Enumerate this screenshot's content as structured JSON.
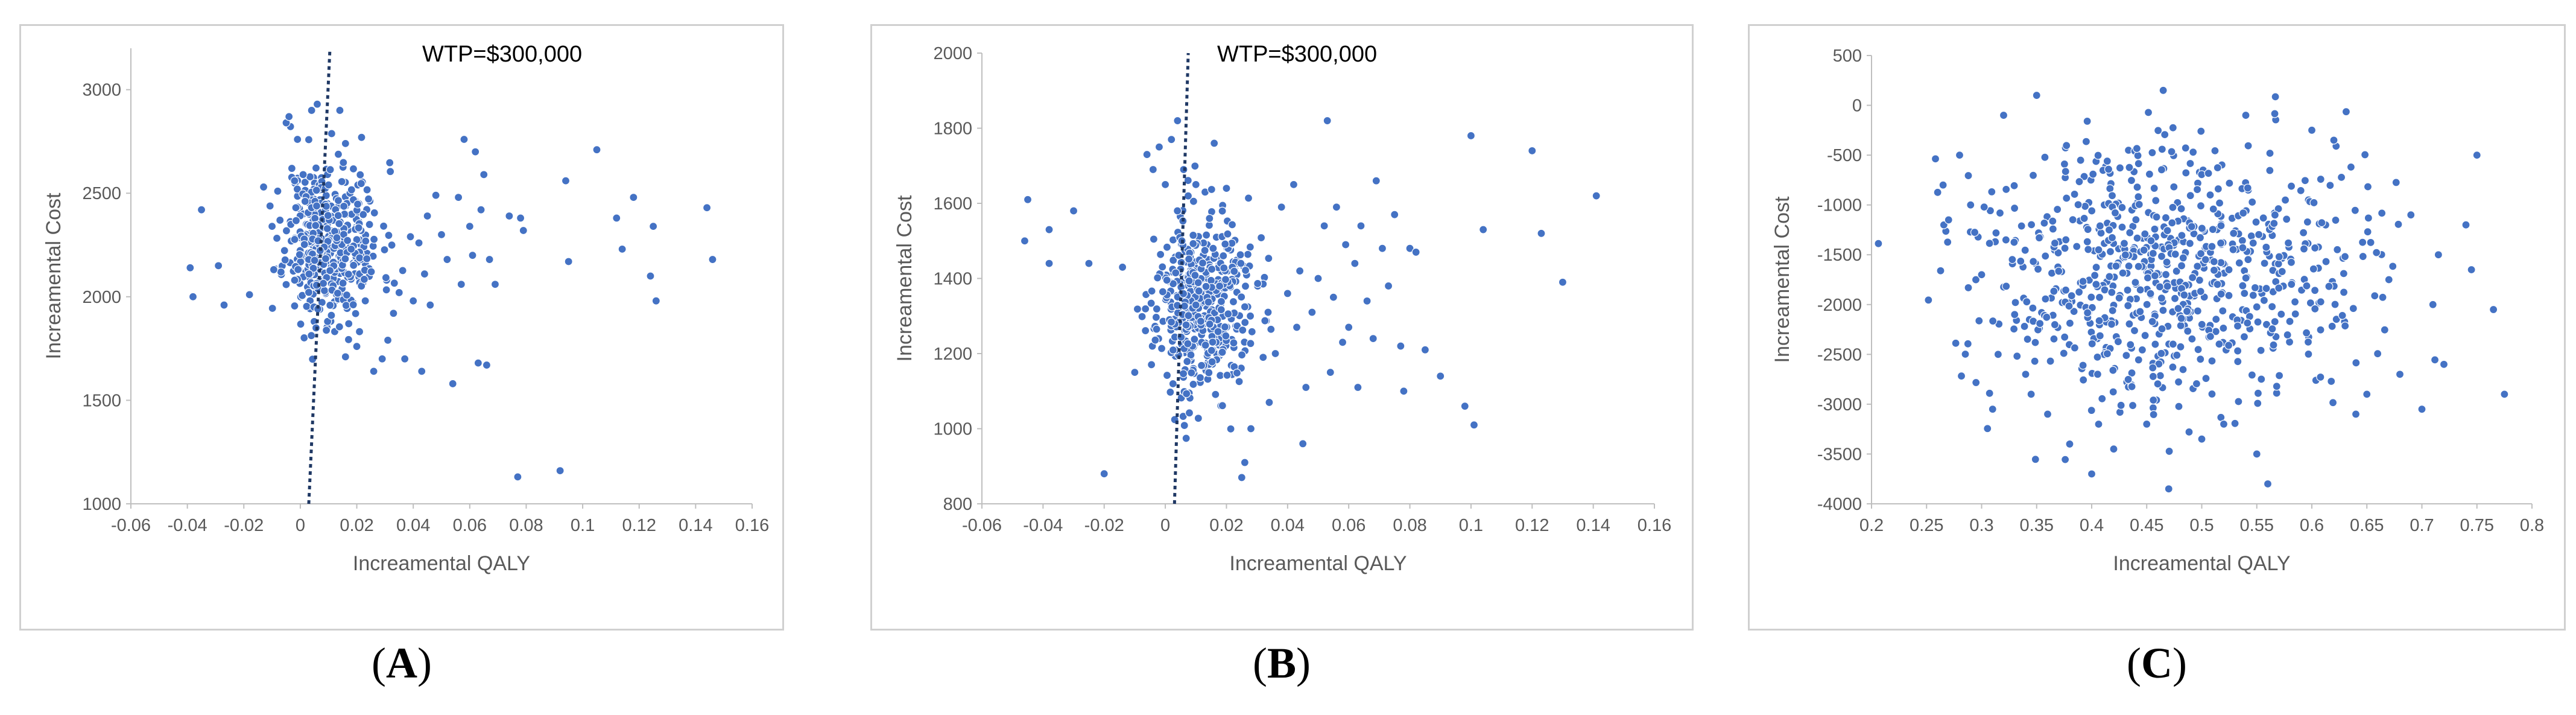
{
  "colors": {
    "point": "#4472C4",
    "point_edge": "#ffffff",
    "wtp_line": "#1F3864",
    "axis": "#bfbfbf"
  },
  "panels": [
    {
      "letter": "A",
      "open": "(",
      "close": ")"
    },
    {
      "letter": "B",
      "open": "(",
      "close": ")"
    },
    {
      "letter": "C",
      "open": "(",
      "close": ")"
    }
  ],
  "chart_data": [
    {
      "type": "scatter",
      "panel": "A",
      "xlabel": "Inc​reamental  QALY",
      "ylabel": "Increamental Cost",
      "xlim": [
        -0.06,
        0.16
      ],
      "ylim": [
        1000,
        3200
      ],
      "xticks": [
        -0.06,
        -0.04,
        -0.02,
        0,
        0.02,
        0.04,
        0.06,
        0.08,
        0.1,
        0.12,
        0.14,
        0.16
      ],
      "xtick_labels": [
        "-0.06",
        "-0.04",
        "-0.02",
        "0",
        "0.02",
        "0.04",
        "0.06",
        "0.08",
        "0.1",
        "0.12",
        "0.14",
        "0.16"
      ],
      "yticks": [
        1000,
        1500,
        2000,
        2500,
        3000
      ],
      "ytick_labels": [
        "1000",
        "1500",
        "2000",
        "2500",
        "3000"
      ],
      "annotation": {
        "text": "WTP=$300,000",
        "line": [
          [
            0.003,
            1000
          ],
          [
            0.0105,
            3200
          ]
        ]
      },
      "points": [
        [
          -0.039,
          2140
        ],
        [
          -0.038,
          2000
        ],
        [
          -0.035,
          2420
        ],
        [
          -0.029,
          2150
        ],
        [
          -0.027,
          1960
        ],
        [
          -0.018,
          2010
        ],
        [
          -0.013,
          2530
        ],
        [
          -0.01,
          2340
        ],
        [
          -0.008,
          2510
        ],
        [
          -0.005,
          2840
        ],
        [
          -0.004,
          2870
        ],
        [
          -0.003,
          2620
        ],
        [
          -0.002,
          2080
        ],
        [
          -0.001,
          2760
        ],
        [
          0.001,
          2590
        ],
        [
          0.004,
          2900
        ],
        [
          0.006,
          2930
        ],
        [
          0.01,
          2540
        ],
        [
          0.014,
          2900
        ],
        [
          0.016,
          2740
        ],
        [
          0.011,
          1910
        ],
        [
          0.016,
          1710
        ],
        [
          0.02,
          1760
        ],
        [
          0.026,
          1640
        ],
        [
          0.029,
          1700
        ],
        [
          0.031,
          1790
        ],
        [
          0.033,
          1920
        ],
        [
          0.035,
          2020
        ],
        [
          0.037,
          1700
        ],
        [
          0.039,
          2290
        ],
        [
          0.04,
          1980
        ],
        [
          0.042,
          2260
        ],
        [
          0.043,
          1640
        ],
        [
          0.044,
          2110
        ],
        [
          0.045,
          2390
        ],
        [
          0.046,
          1960
        ],
        [
          0.048,
          2490
        ],
        [
          0.05,
          2300
        ],
        [
          0.052,
          2180
        ],
        [
          0.054,
          1580
        ],
        [
          0.056,
          2480
        ],
        [
          0.057,
          2060
        ],
        [
          0.058,
          2760
        ],
        [
          0.06,
          2340
        ],
        [
          0.061,
          2200
        ],
        [
          0.062,
          2700
        ],
        [
          0.063,
          1680
        ],
        [
          0.064,
          2420
        ],
        [
          0.065,
          2590
        ],
        [
          0.066,
          1670
        ],
        [
          0.067,
          2180
        ],
        [
          0.069,
          2060
        ],
        [
          0.074,
          2390
        ],
        [
          0.077,
          1130
        ],
        [
          0.078,
          2380
        ],
        [
          0.079,
          2320
        ],
        [
          0.092,
          1160
        ],
        [
          0.094,
          2560
        ],
        [
          0.095,
          2170
        ],
        [
          0.105,
          2710
        ],
        [
          0.112,
          2380
        ],
        [
          0.114,
          2230
        ],
        [
          0.118,
          2480
        ],
        [
          0.124,
          2100
        ],
        [
          0.125,
          2340
        ],
        [
          0.126,
          1980
        ],
        [
          0.144,
          2430
        ],
        [
          0.146,
          2180
        ]
      ],
      "cloud": {
        "cx": 0.009,
        "cy": 2270,
        "sx": 0.007,
        "sy": 190,
        "n": 460,
        "seed": 11,
        "xskew": 1.4
      }
    },
    {
      "type": "scatter",
      "panel": "B",
      "xlabel": "Increamental  QALY",
      "ylabel": "Increamental Cost",
      "xlim": [
        -0.06,
        0.16
      ],
      "ylim": [
        800,
        2000
      ],
      "xticks": [
        -0.06,
        -0.04,
        -0.02,
        0,
        0.02,
        0.04,
        0.06,
        0.08,
        0.1,
        0.12,
        0.14,
        0.16
      ],
      "xtick_labels": [
        "-0.06",
        "-0.04",
        "-0.02",
        "0",
        "0.02",
        "0.04",
        "0.06",
        "0.08",
        "0.1",
        "0.12",
        "0.14",
        "0.16"
      ],
      "yticks": [
        800,
        1000,
        1200,
        1400,
        1600,
        1800,
        2000
      ],
      "ytick_labels": [
        "800",
        "1000",
        "1200",
        "1400",
        "1600",
        "1800",
        "2000"
      ],
      "annotation": {
        "text": "WTP=$300,000",
        "line": [
          [
            0.003,
            800
          ],
          [
            0.0075,
            2000
          ]
        ]
      },
      "points": [
        [
          -0.046,
          1500
        ],
        [
          -0.045,
          1610
        ],
        [
          -0.038,
          1530
        ],
        [
          -0.038,
          1440
        ],
        [
          -0.03,
          1580
        ],
        [
          -0.025,
          1440
        ],
        [
          -0.02,
          880
        ],
        [
          -0.014,
          1430
        ],
        [
          -0.01,
          1150
        ],
        [
          -0.006,
          1730
        ],
        [
          -0.004,
          1690
        ],
        [
          -0.002,
          1750
        ],
        [
          0.0,
          1650
        ],
        [
          0.002,
          1770
        ],
        [
          0.004,
          1820
        ],
        [
          0.006,
          1690
        ],
        [
          0.01,
          1650
        ],
        [
          0.016,
          1760
        ],
        [
          0.02,
          1640
        ],
        [
          0.025,
          870
        ],
        [
          0.026,
          910
        ],
        [
          0.028,
          1000
        ],
        [
          0.032,
          1190
        ],
        [
          0.034,
          1070
        ],
        [
          0.036,
          1200
        ],
        [
          0.038,
          1590
        ],
        [
          0.04,
          1360
        ],
        [
          0.042,
          1650
        ],
        [
          0.043,
          1270
        ],
        [
          0.044,
          1420
        ],
        [
          0.045,
          960
        ],
        [
          0.046,
          1110
        ],
        [
          0.048,
          1310
        ],
        [
          0.05,
          1400
        ],
        [
          0.052,
          1540
        ],
        [
          0.053,
          1820
        ],
        [
          0.054,
          1150
        ],
        [
          0.055,
          1350
        ],
        [
          0.056,
          1590
        ],
        [
          0.058,
          1230
        ],
        [
          0.059,
          1490
        ],
        [
          0.06,
          1270
        ],
        [
          0.062,
          1440
        ],
        [
          0.063,
          1110
        ],
        [
          0.064,
          1540
        ],
        [
          0.066,
          1340
        ],
        [
          0.068,
          1240
        ],
        [
          0.069,
          1660
        ],
        [
          0.071,
          1480
        ],
        [
          0.073,
          1380
        ],
        [
          0.075,
          1570
        ],
        [
          0.077,
          1220
        ],
        [
          0.078,
          1100
        ],
        [
          0.08,
          1480
        ],
        [
          0.082,
          1470
        ],
        [
          0.085,
          1210
        ],
        [
          0.09,
          1140
        ],
        [
          0.098,
          1060
        ],
        [
          0.1,
          1780
        ],
        [
          0.101,
          1010
        ],
        [
          0.104,
          1530
        ],
        [
          0.12,
          1740
        ],
        [
          0.123,
          1520
        ],
        [
          0.141,
          1620
        ],
        [
          0.13,
          1390
        ]
      ],
      "cloud": {
        "cx": 0.01,
        "cy": 1330,
        "sx": 0.0065,
        "sy": 120,
        "n": 480,
        "seed": 23,
        "xskew": 1.5
      }
    },
    {
      "type": "scatter",
      "panel": "C",
      "xlabel": "Increamental  QALY",
      "ylabel": "Increamental Cost",
      "xlim": [
        0.2,
        0.8
      ],
      "ylim": [
        -4000,
        500
      ],
      "xticks": [
        0.2,
        0.25,
        0.3,
        0.35,
        0.4,
        0.45,
        0.5,
        0.55,
        0.6,
        0.65,
        0.7,
        0.75,
        0.8
      ],
      "xtick_labels": [
        "0.2",
        "0.25",
        "0.3",
        "0.35",
        "0.4",
        "0.45",
        "0.5",
        "0.55",
        "0.6",
        "0.65",
        "0.7",
        "0.75",
        "0.8"
      ],
      "yticks": [
        -4000,
        -3500,
        -3000,
        -2500,
        -2000,
        -1500,
        -1000,
        -500,
        0,
        500
      ],
      "ytick_labels": [
        "-4000",
        "-3500",
        "-3000",
        "-2500",
        "-2000",
        "-1500",
        "-1000",
        "-500",
        "0",
        "500"
      ],
      "points": [
        [
          0.265,
          -800
        ],
        [
          0.27,
          -1150
        ],
        [
          0.28,
          -500
        ],
        [
          0.29,
          -1000
        ],
        [
          0.3,
          -1700
        ],
        [
          0.31,
          -3050
        ],
        [
          0.315,
          -2500
        ],
        [
          0.32,
          -100
        ],
        [
          0.33,
          -2100
        ],
        [
          0.34,
          -2700
        ],
        [
          0.345,
          -2900
        ],
        [
          0.35,
          100
        ],
        [
          0.36,
          -3100
        ],
        [
          0.38,
          -3400
        ],
        [
          0.4,
          -3700
        ],
        [
          0.42,
          -3450
        ],
        [
          0.45,
          -3200
        ],
        [
          0.465,
          150
        ],
        [
          0.47,
          -3850
        ],
        [
          0.5,
          -3350
        ],
        [
          0.52,
          -3200
        ],
        [
          0.54,
          -100
        ],
        [
          0.55,
          -3500
        ],
        [
          0.56,
          -3800
        ],
        [
          0.6,
          -250
        ],
        [
          0.62,
          -350
        ],
        [
          0.64,
          -3100
        ],
        [
          0.65,
          -2900
        ],
        [
          0.67,
          -1750
        ],
        [
          0.68,
          -2700
        ],
        [
          0.69,
          -1100
        ],
        [
          0.7,
          -3050
        ],
        [
          0.71,
          -2000
        ],
        [
          0.715,
          -1500
        ],
        [
          0.72,
          -2600
        ],
        [
          0.74,
          -1200
        ],
        [
          0.745,
          -1650
        ],
        [
          0.75,
          -500
        ],
        [
          0.765,
          -2050
        ],
        [
          0.775,
          -2900
        ]
      ],
      "cloud": {
        "cx": 0.47,
        "cy": -1650,
        "sx": 0.085,
        "sy": 650,
        "n": 760,
        "seed": 37,
        "xskew": 1.0
      }
    }
  ]
}
